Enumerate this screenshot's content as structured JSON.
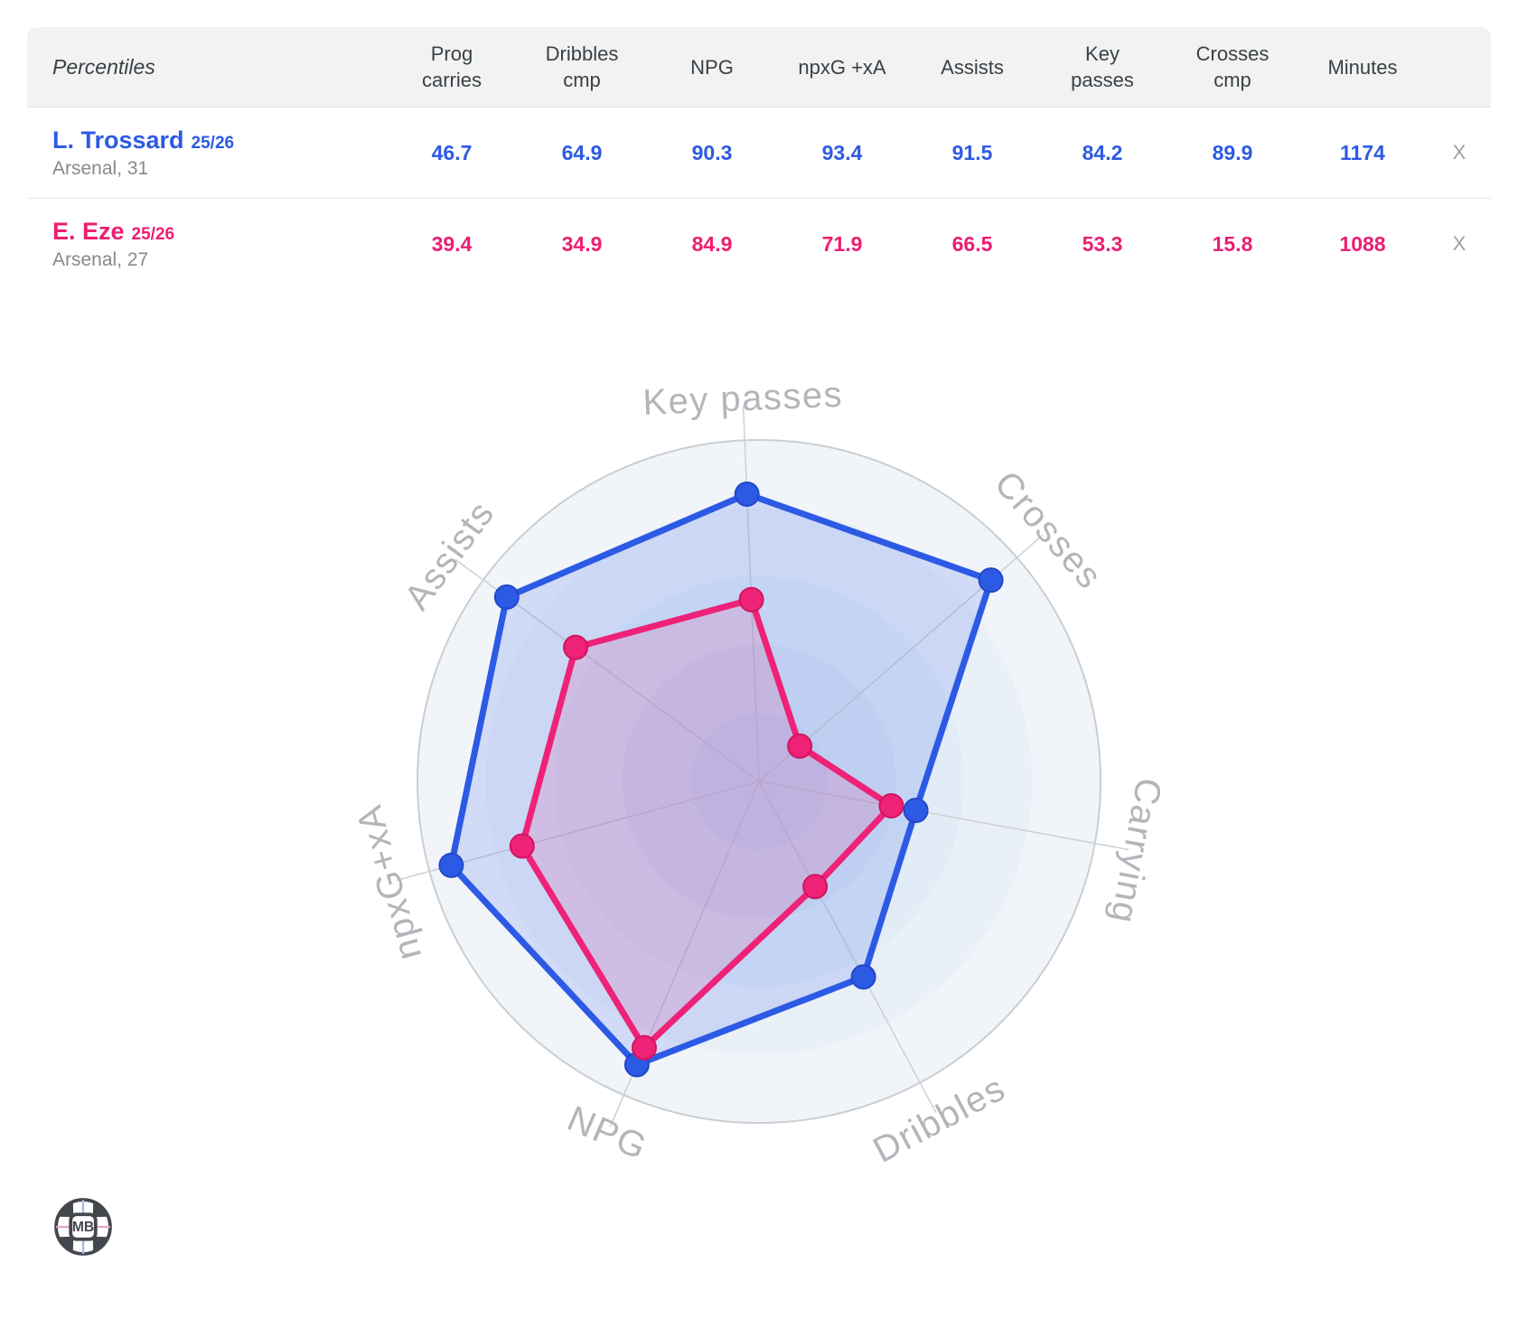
{
  "table": {
    "header": {
      "first_label": "Percentiles",
      "columns": [
        "Prog\ncarries",
        "Dribbles\ncmp",
        "NPG",
        "npxG +xA",
        "Assists",
        "Key\npasses",
        "Crosses\ncmp",
        "Minutes"
      ]
    },
    "rows": [
      {
        "name": "L. Trossard",
        "season": "25/26",
        "team_age": "Arsenal, 31",
        "color": "#2d5ae4",
        "values": [
          "46.7",
          "64.9",
          "90.3",
          "93.4",
          "91.5",
          "84.2",
          "89.9",
          "1174"
        ],
        "remove_label": "X"
      },
      {
        "name": "E. Eze",
        "season": "25/26",
        "team_age": "Arsenal, 27",
        "color": "#ec1e72",
        "values": [
          "39.4",
          "34.9",
          "84.9",
          "71.9",
          "66.5",
          "53.3",
          "15.8",
          "1088"
        ],
        "remove_label": "X"
      }
    ]
  },
  "chart_data": {
    "type": "radar",
    "axes": [
      "Key passes",
      "Crosses",
      "Carrying",
      "Dribbles",
      "NPG",
      "npxG+xA",
      "Assists"
    ],
    "range": [
      0,
      100
    ],
    "rings": 5,
    "legend_position": "none",
    "series": [
      {
        "name": "L. Trossard 25/26",
        "color": "#2d5ae4",
        "dot_edge": "#2148c8",
        "fill_opacity": 0.16,
        "values": [
          84.2,
          89.9,
          46.7,
          64.9,
          90.3,
          93.4,
          91.5
        ]
      },
      {
        "name": "E. Eze 25/26",
        "color": "#ee2277",
        "dot_edge": "#d01460",
        "fill_opacity": 0.14,
        "values": [
          53.3,
          15.8,
          39.4,
          34.9,
          84.9,
          71.9,
          66.5
        ]
      }
    ],
    "palette": {
      "ring_fills": [
        "#f1f5fa",
        "#eaf0f8",
        "#e2ecf7",
        "#dbe6f5",
        "#d4e0f3"
      ],
      "outer_stroke": "#c9ced3",
      "spoke_stroke": "#cdd0d4",
      "label_color": "#b2b6ba"
    }
  },
  "logo": {
    "text": "MB",
    "color": "#43474d",
    "spoke_blue": "#a9b6e2",
    "spoke_pink": "#dfa6c6"
  }
}
